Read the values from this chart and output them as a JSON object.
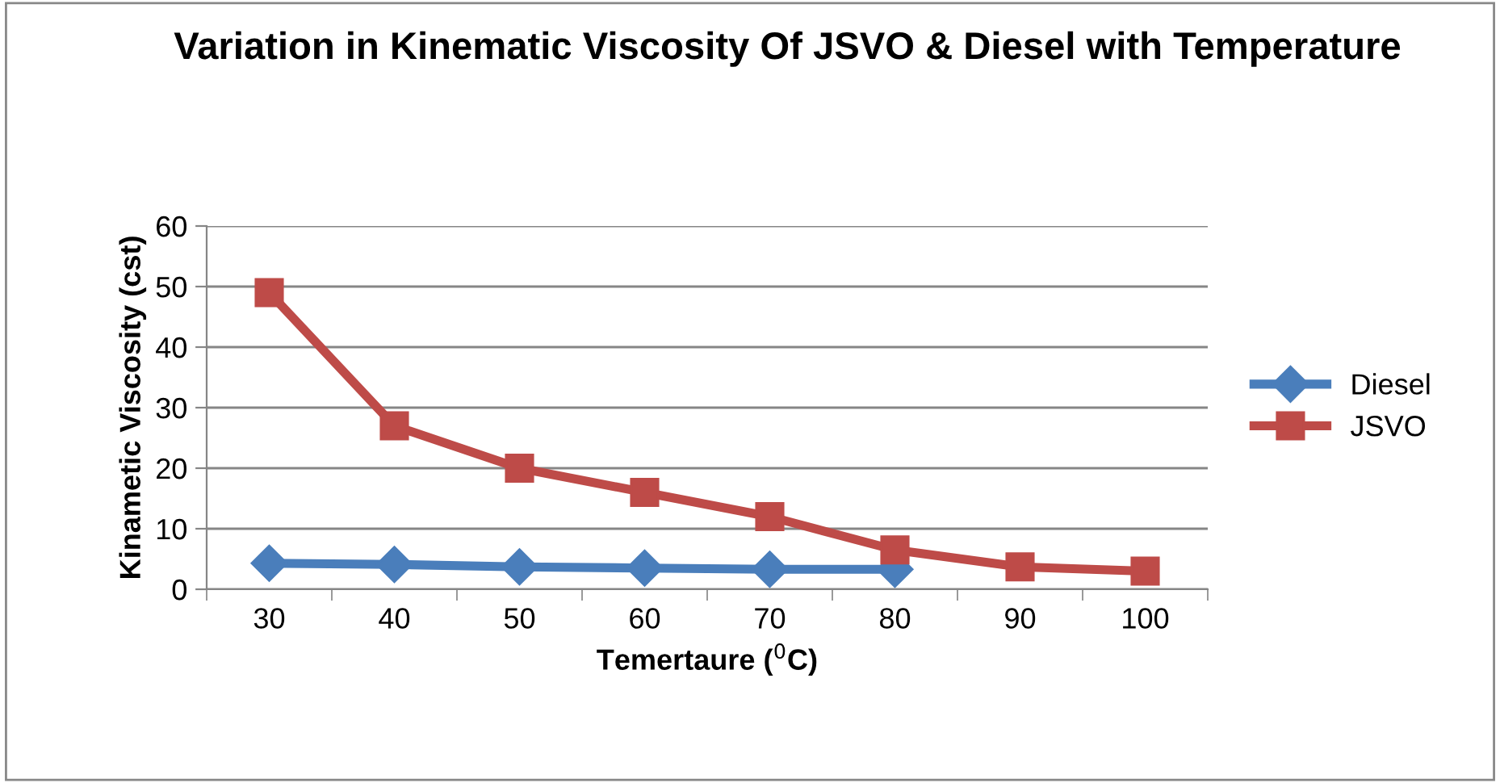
{
  "chart_data": {
    "type": "line",
    "title": "Variation in Kinematic Viscosity Of JSVO & Diesel with Temperature",
    "xlabel": "Temertaure ($^{0}$C)",
    "ylabel": "Kinametic Viscosity (cst)",
    "categories": [
      "30",
      "40",
      "50",
      "60",
      "70",
      "80",
      "90",
      "100"
    ],
    "series": [
      {
        "name": "Diesel",
        "color": "#4a7ebb",
        "marker": "diamond",
        "values": [
          4.3,
          4.1,
          3.7,
          3.5,
          3.3,
          3.3,
          null,
          null
        ]
      },
      {
        "name": "JSVO",
        "color": "#be4b48",
        "marker": "square",
        "values": [
          49,
          27,
          20,
          16,
          12,
          6.5,
          3.7,
          3.0
        ]
      }
    ],
    "ylim": [
      0,
      60
    ],
    "yticks": [
      0,
      10,
      20,
      30,
      40,
      50,
      60
    ],
    "grid": "y",
    "legend": "right",
    "line_style": "solid"
  }
}
